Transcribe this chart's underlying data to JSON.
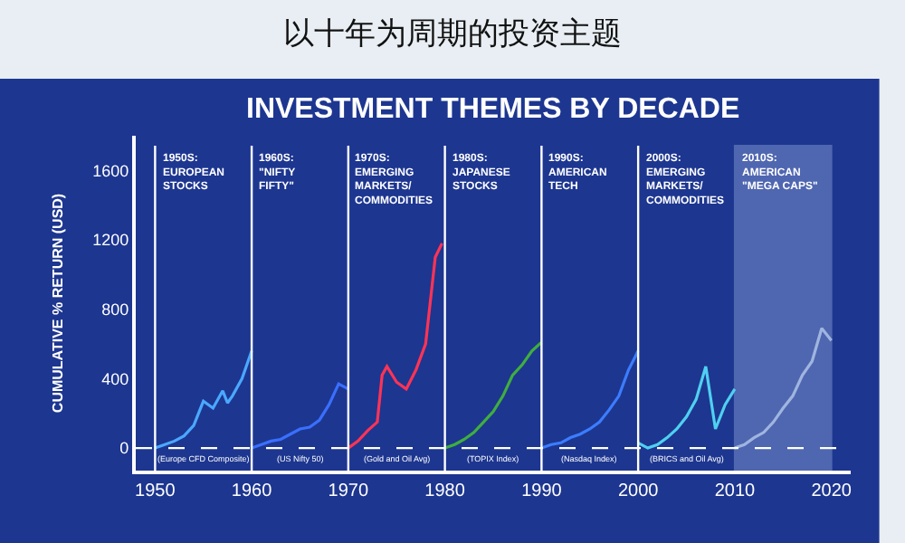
{
  "chart_data": {
    "type": "line",
    "title": "以十年为周期的投资主题",
    "subtitle": "INVESTMENT THEMES BY DECADE",
    "ylabel": "CUMULATIVE % RETURN (USD)",
    "xlim": [
      1948,
      2022
    ],
    "xticks": [
      1950,
      1960,
      1970,
      1980,
      1990,
      2000,
      2010,
      2020
    ],
    "ylim": [
      -130,
      1800
    ],
    "yticks": [
      0,
      400,
      800,
      1200,
      1600
    ],
    "grid": false,
    "marker": "none",
    "line_style": "solid",
    "series": [
      {
        "color": "#4aa8ff",
        "x": [
          1950,
          1951,
          1952,
          1953,
          1954,
          1955,
          1956,
          1957,
          1957.5,
          1958,
          1959,
          1960
        ],
        "values": [
          0,
          20,
          40,
          70,
          130,
          270,
          230,
          330,
          260,
          300,
          400,
          560
        ]
      },
      {
        "color": "#3a6fff",
        "x": [
          1960,
          1961,
          1962,
          1963,
          1964,
          1965,
          1966,
          1967,
          1968,
          1969,
          1970
        ],
        "values": [
          0,
          20,
          40,
          50,
          80,
          110,
          120,
          160,
          250,
          370,
          340
        ]
      },
      {
        "color": "#ff3355",
        "x": [
          1970,
          1971,
          1972,
          1973,
          1973.5,
          1974,
          1975,
          1976,
          1977,
          1978,
          1979,
          1979.7
        ],
        "values": [
          0,
          40,
          100,
          150,
          420,
          470,
          380,
          340,
          450,
          600,
          1100,
          1180
        ]
      },
      {
        "color": "#3fae3f",
        "x": [
          1980,
          1981,
          1982,
          1983,
          1984,
          1985,
          1986,
          1987,
          1988,
          1989,
          1990
        ],
        "values": [
          0,
          20,
          50,
          90,
          150,
          210,
          300,
          420,
          480,
          560,
          610
        ]
      },
      {
        "color": "#3b7dff",
        "x": [
          1990,
          1991,
          1992,
          1993,
          1994,
          1995,
          1996,
          1997,
          1998,
          1999,
          2000
        ],
        "values": [
          0,
          20,
          30,
          60,
          80,
          110,
          150,
          220,
          300,
          450,
          560
        ]
      },
      {
        "color": "#4fd0f0",
        "x": [
          2000,
          2001,
          2002,
          2003,
          2004,
          2005,
          2006,
          2007,
          2008,
          2009,
          2010
        ],
        "values": [
          30,
          0,
          20,
          60,
          110,
          180,
          280,
          470,
          110,
          250,
          340
        ]
      },
      {
        "color": "#9fb5e0",
        "x": [
          2010,
          2011,
          2012,
          2013,
          2014,
          2015,
          2016,
          2017,
          2018,
          2019,
          2020
        ],
        "values": [
          0,
          20,
          60,
          90,
          150,
          230,
          300,
          420,
          500,
          690,
          620
        ]
      }
    ],
    "ref_lines": [
      {
        "axis": "y",
        "value": 0,
        "color": "#ffffff",
        "line_style": "dashed"
      },
      {
        "axis": "x",
        "value": 1950,
        "color": "#ffffff",
        "line_style": "solid",
        "label": "1950S:\nEUROPEAN\nSTOCKS"
      },
      {
        "axis": "x",
        "value": 1960,
        "color": "#ffffff",
        "line_style": "solid",
        "label": "1960S:\n\"NIFTY\nFIFTY\""
      },
      {
        "axis": "x",
        "value": 1970,
        "color": "#ffffff",
        "line_style": "solid",
        "label": "1970S:\nEMERGING\nMARKETS/\nCOMMODITIES"
      },
      {
        "axis": "x",
        "value": 1980,
        "color": "#ffffff",
        "line_style": "solid",
        "label": "1980S:\nJAPANESE\nSTOCKS"
      },
      {
        "axis": "x",
        "value": 1990,
        "color": "#ffffff",
        "line_style": "solid",
        "label": "1990S:\nAMERICAN\nTECH"
      },
      {
        "axis": "x",
        "value": 2000,
        "color": "#ffffff",
        "line_style": "solid",
        "label": "2000S:\nEMERGING\nMARKETS/\nCOMMODITIES"
      }
    ],
    "bands": [
      {
        "axis": "x",
        "from": 2010,
        "to": 2020,
        "label": "2010S:\nAMERICAN\n\"MEGA CAPS\"",
        "color": "#8da2d8"
      }
    ],
    "annotations": [
      "(Europe CFD Composite)",
      "(US Nifty 50)",
      "(Gold and Oil Avg)",
      "(TOPIX Index)",
      "(Nasdaq Index)",
      "(BRICS and Oil Avg)"
    ]
  }
}
